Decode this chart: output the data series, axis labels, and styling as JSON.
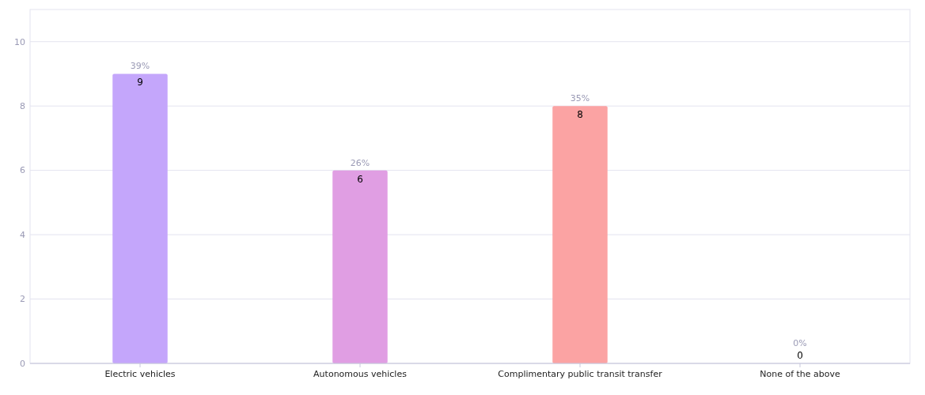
{
  "chart_data": {
    "type": "bar",
    "categories": [
      "Electric vehicles",
      "Autonomous vehicles",
      "Complimentary public transit transfer",
      "None of the above"
    ],
    "values": [
      9,
      6,
      8,
      0
    ],
    "colors": [
      "#c4a6fb",
      "#e09ee3",
      "#fba3a3",
      "#f5c35c"
    ],
    "ylim": [
      0,
      11
    ],
    "yticks": [
      0,
      2,
      4,
      6,
      8,
      10
    ],
    "grid": "y",
    "data_labels": true,
    "annotations": [
      {
        "text": "39%",
        "x": "Electric vehicles",
        "y": 9
      },
      {
        "text": "26%",
        "x": "Autonomous vehicles",
        "y": 6
      },
      {
        "text": "35%",
        "x": "Complimentary public transit transfer",
        "y": 8
      },
      {
        "text": "0%",
        "x": "None of the above",
        "y": 0
      }
    ]
  }
}
